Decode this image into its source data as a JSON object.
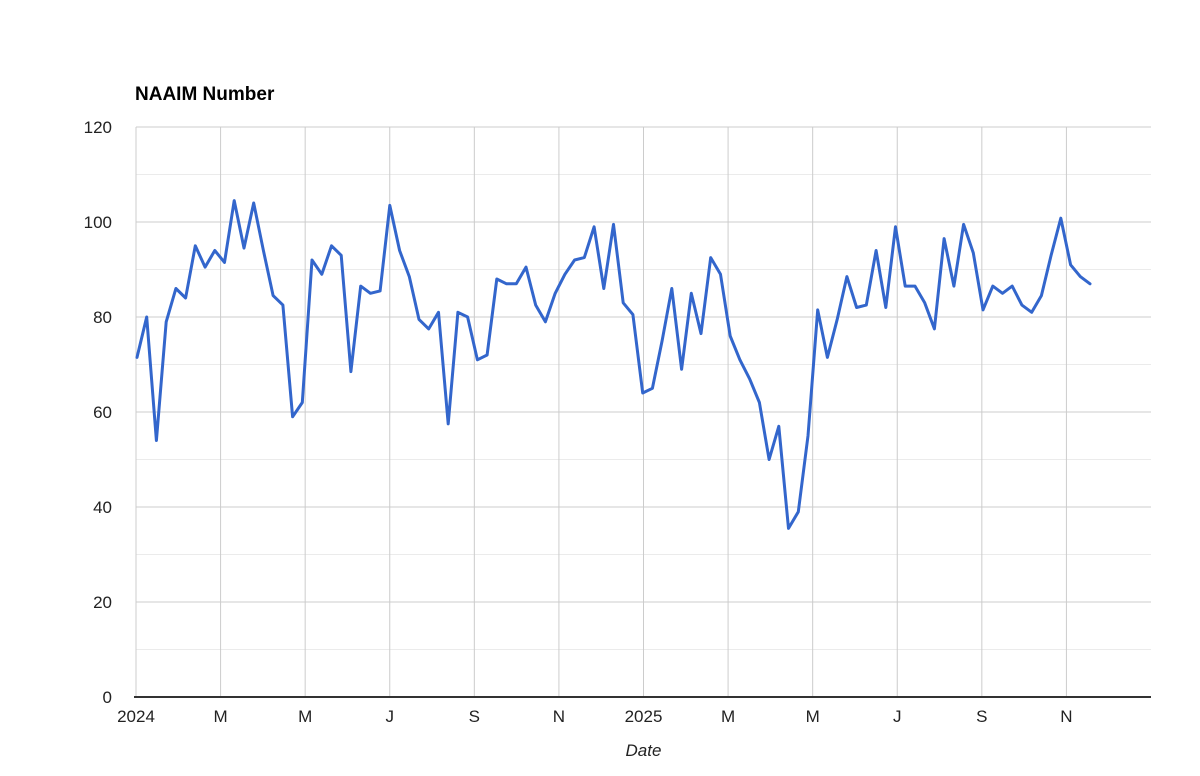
{
  "chart_data": {
    "type": "line",
    "title": "NAAIM Number",
    "xlabel": "Date",
    "ylabel": "",
    "ylim": [
      0,
      120
    ],
    "grid": "major horizontal and vertical gridlines with faint minor horizontal gridlines every 10",
    "legend_position": "none",
    "y_tick_labels": [
      "0",
      "20",
      "40",
      "60",
      "80",
      "100",
      "120"
    ],
    "y_major_ticks": [
      0,
      20,
      40,
      60,
      80,
      100,
      120
    ],
    "y_minor_ticks": [
      10,
      30,
      50,
      70,
      90,
      110
    ],
    "x_tick_labels": [
      "2024",
      "M",
      "M",
      "J",
      "S",
      "N",
      "2025",
      "M",
      "M",
      "J",
      "S",
      "N"
    ],
    "x_tick_months": [
      0,
      2,
      4,
      6,
      8,
      10,
      12,
      14,
      16,
      18,
      20,
      22
    ],
    "x_axis_span_months": 24,
    "frequency": "weekly",
    "series": [
      {
        "name": "NAAIM Number",
        "values": [
          71.5,
          80,
          54,
          79,
          86,
          84,
          95,
          90.5,
          94,
          91.5,
          104.5,
          94.5,
          104,
          94,
          84.5,
          82.5,
          59,
          62,
          92,
          89,
          95,
          93,
          68.5,
          86.5,
          85,
          85.5,
          103.5,
          94,
          88.5,
          79.5,
          77.5,
          81,
          57.5,
          81,
          80,
          71,
          72,
          88,
          87,
          87,
          90.5,
          82.5,
          79,
          85,
          89,
          92,
          92.5,
          99,
          86,
          99.5,
          83,
          80.5,
          64,
          65,
          75,
          86,
          69,
          85,
          76.5,
          92.5,
          89,
          76,
          71,
          67,
          62,
          50,
          57,
          35.5,
          39,
          55,
          81.5,
          71.5,
          79.5,
          88.5,
          82,
          82.5,
          94,
          82,
          99,
          86.5,
          86.5,
          83,
          77.5,
          96.5,
          86.5,
          99.5,
          93.5,
          81.5,
          86.5,
          85,
          86.5,
          82.5,
          81,
          84.5,
          93,
          100.8,
          91,
          88.5,
          87
        ]
      }
    ],
    "colors": {
      "line": "#3366cc",
      "grid_major": "#cccccc",
      "grid_minor": "#ebebeb",
      "axis_baseline": "#333333",
      "tick_text": "#222222",
      "title_text": "#000000"
    }
  }
}
